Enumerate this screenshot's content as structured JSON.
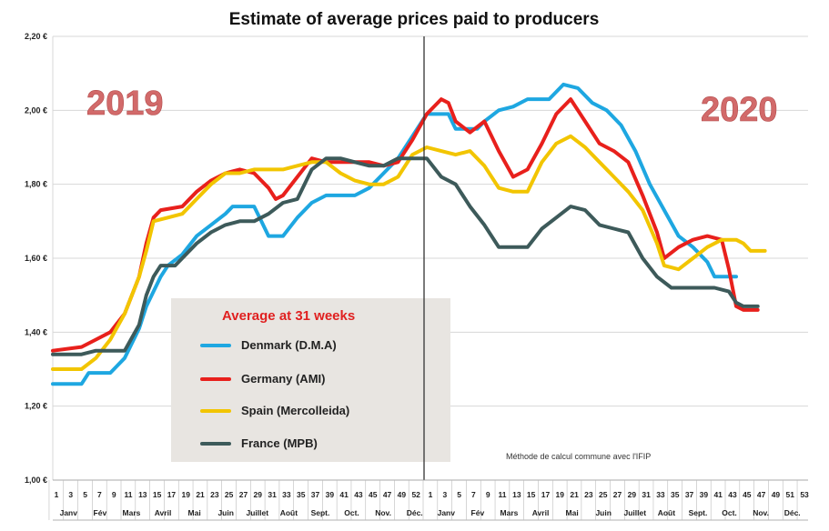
{
  "chart_data": {
    "type": "line",
    "title": "Estimate of average prices paid to producers",
    "xlabel": "",
    "ylabel": "",
    "ylim": [
      1.0,
      2.2
    ],
    "y_ticks": [
      "1,00 €",
      "1,20 €",
      "1,40 €",
      "1,60 €",
      "1,80 €",
      "2,00 €",
      "2,20 €"
    ],
    "x_week_ticks": [
      "1",
      "3",
      "5",
      "7",
      "9",
      "11",
      "13",
      "15",
      "17",
      "19",
      "21",
      "23",
      "25",
      "27",
      "29",
      "31",
      "33",
      "35",
      "37",
      "39",
      "41",
      "43",
      "45",
      "47",
      "49",
      "52",
      "1",
      "3",
      "5",
      "7",
      "9",
      "11",
      "13",
      "15",
      "17",
      "19",
      "21",
      "23",
      "25",
      "27",
      "29",
      "31",
      "33",
      "35",
      "37",
      "39",
      "41",
      "43",
      "45",
      "47",
      "49",
      "51",
      "53"
    ],
    "months_2019": [
      "Janv",
      "Fév",
      "Mars",
      "Avril",
      "Mai",
      "Juin",
      "Juillet",
      "Août",
      "Sept.",
      "Oct.",
      "Nov.",
      "Déc."
    ],
    "months_2020": [
      "Janv",
      "Fév",
      "Mars",
      "Avril",
      "Mai",
      "Juin",
      "Juillet",
      "Août",
      "Sept.",
      "Oct.",
      "Nov.",
      "Déc."
    ],
    "year_labels": [
      "2019",
      "2020"
    ],
    "legend_title": "Average at 31 weeks",
    "note": "Méthode de calcul commune avec l'IFIP",
    "grid": true,
    "x_unit": "week index (1 = week 1 of 2019, 53 = week 1 of 2020)",
    "series": [
      {
        "name": "Denmark (D.M.A)",
        "color": "#1ea7e1",
        "points": [
          [
            1,
            1.26
          ],
          [
            5,
            1.26
          ],
          [
            6,
            1.29
          ],
          [
            9,
            1.29
          ],
          [
            11,
            1.33
          ],
          [
            13,
            1.41
          ],
          [
            14,
            1.47
          ],
          [
            16,
            1.55
          ],
          [
            17,
            1.58
          ],
          [
            19,
            1.61
          ],
          [
            21,
            1.66
          ],
          [
            23,
            1.69
          ],
          [
            25,
            1.72
          ],
          [
            26,
            1.74
          ],
          [
            29,
            1.74
          ],
          [
            30,
            1.7
          ],
          [
            31,
            1.66
          ],
          [
            33,
            1.66
          ],
          [
            35,
            1.71
          ],
          [
            37,
            1.75
          ],
          [
            39,
            1.77
          ],
          [
            43,
            1.77
          ],
          [
            45,
            1.79
          ],
          [
            47,
            1.83
          ],
          [
            49,
            1.87
          ],
          [
            51,
            1.93
          ],
          [
            53,
            1.99
          ],
          [
            56,
            1.99
          ],
          [
            57,
            1.95
          ],
          [
            60,
            1.95
          ],
          [
            61,
            1.97
          ],
          [
            63,
            2.0
          ],
          [
            65,
            2.01
          ],
          [
            67,
            2.03
          ],
          [
            70,
            2.03
          ],
          [
            72,
            2.07
          ],
          [
            74,
            2.06
          ],
          [
            76,
            2.02
          ],
          [
            78,
            2.0
          ],
          [
            80,
            1.96
          ],
          [
            82,
            1.89
          ],
          [
            84,
            1.8
          ],
          [
            86,
            1.73
          ],
          [
            88,
            1.66
          ],
          [
            90,
            1.63
          ],
          [
            92,
            1.59
          ],
          [
            93,
            1.55
          ],
          [
            96,
            1.55
          ]
        ]
      },
      {
        "name": "Germany (AMI)",
        "color": "#e8201c",
        "points": [
          [
            1,
            1.35
          ],
          [
            5,
            1.36
          ],
          [
            7,
            1.38
          ],
          [
            9,
            1.4
          ],
          [
            11,
            1.45
          ],
          [
            13,
            1.55
          ],
          [
            14,
            1.64
          ],
          [
            15,
            1.71
          ],
          [
            16,
            1.73
          ],
          [
            19,
            1.74
          ],
          [
            21,
            1.78
          ],
          [
            23,
            1.81
          ],
          [
            25,
            1.83
          ],
          [
            27,
            1.84
          ],
          [
            29,
            1.83
          ],
          [
            31,
            1.79
          ],
          [
            32,
            1.76
          ],
          [
            33,
            1.77
          ],
          [
            35,
            1.82
          ],
          [
            37,
            1.87
          ],
          [
            39,
            1.86
          ],
          [
            41,
            1.86
          ],
          [
            45,
            1.86
          ],
          [
            47,
            1.85
          ],
          [
            49,
            1.86
          ],
          [
            51,
            1.92
          ],
          [
            53,
            1.99
          ],
          [
            55,
            2.03
          ],
          [
            56,
            2.02
          ],
          [
            57,
            1.97
          ],
          [
            59,
            1.94
          ],
          [
            61,
            1.97
          ],
          [
            63,
            1.89
          ],
          [
            65,
            1.82
          ],
          [
            67,
            1.84
          ],
          [
            69,
            1.91
          ],
          [
            71,
            1.99
          ],
          [
            73,
            2.03
          ],
          [
            75,
            1.97
          ],
          [
            77,
            1.91
          ],
          [
            79,
            1.89
          ],
          [
            81,
            1.86
          ],
          [
            83,
            1.77
          ],
          [
            85,
            1.67
          ],
          [
            86,
            1.6
          ],
          [
            88,
            1.63
          ],
          [
            90,
            1.65
          ],
          [
            92,
            1.66
          ],
          [
            94,
            1.65
          ],
          [
            95,
            1.57
          ],
          [
            96,
            1.47
          ],
          [
            97,
            1.46
          ],
          [
            99,
            1.46
          ]
        ]
      },
      {
        "name": "Spain (Mercolleida)",
        "color": "#f2c500",
        "points": [
          [
            1,
            1.3
          ],
          [
            5,
            1.3
          ],
          [
            7,
            1.33
          ],
          [
            9,
            1.38
          ],
          [
            11,
            1.45
          ],
          [
            13,
            1.55
          ],
          [
            14,
            1.62
          ],
          [
            15,
            1.7
          ],
          [
            17,
            1.71
          ],
          [
            19,
            1.72
          ],
          [
            21,
            1.76
          ],
          [
            23,
            1.8
          ],
          [
            25,
            1.83
          ],
          [
            27,
            1.83
          ],
          [
            29,
            1.84
          ],
          [
            31,
            1.84
          ],
          [
            33,
            1.84
          ],
          [
            35,
            1.85
          ],
          [
            37,
            1.86
          ],
          [
            39,
            1.86
          ],
          [
            41,
            1.83
          ],
          [
            43,
            1.81
          ],
          [
            45,
            1.8
          ],
          [
            47,
            1.8
          ],
          [
            49,
            1.82
          ],
          [
            51,
            1.88
          ],
          [
            53,
            1.9
          ],
          [
            55,
            1.89
          ],
          [
            57,
            1.88
          ],
          [
            59,
            1.89
          ],
          [
            61,
            1.85
          ],
          [
            63,
            1.79
          ],
          [
            65,
            1.78
          ],
          [
            67,
            1.78
          ],
          [
            69,
            1.86
          ],
          [
            71,
            1.91
          ],
          [
            73,
            1.93
          ],
          [
            75,
            1.9
          ],
          [
            77,
            1.86
          ],
          [
            79,
            1.82
          ],
          [
            81,
            1.78
          ],
          [
            83,
            1.73
          ],
          [
            85,
            1.64
          ],
          [
            86,
            1.58
          ],
          [
            88,
            1.57
          ],
          [
            90,
            1.6
          ],
          [
            92,
            1.63
          ],
          [
            94,
            1.65
          ],
          [
            96,
            1.65
          ],
          [
            97,
            1.64
          ],
          [
            98,
            1.62
          ],
          [
            100,
            1.62
          ]
        ]
      },
      {
        "name": "France (MPB)",
        "color": "#3d5a5a",
        "points": [
          [
            1,
            1.34
          ],
          [
            3,
            1.34
          ],
          [
            5,
            1.34
          ],
          [
            7,
            1.35
          ],
          [
            11,
            1.35
          ],
          [
            13,
            1.42
          ],
          [
            14,
            1.5
          ],
          [
            15,
            1.55
          ],
          [
            16,
            1.58
          ],
          [
            18,
            1.58
          ],
          [
            19,
            1.6
          ],
          [
            21,
            1.64
          ],
          [
            23,
            1.67
          ],
          [
            25,
            1.69
          ],
          [
            27,
            1.7
          ],
          [
            29,
            1.7
          ],
          [
            31,
            1.72
          ],
          [
            33,
            1.75
          ],
          [
            35,
            1.76
          ],
          [
            37,
            1.84
          ],
          [
            39,
            1.87
          ],
          [
            41,
            1.87
          ],
          [
            43,
            1.86
          ],
          [
            45,
            1.85
          ],
          [
            47,
            1.85
          ],
          [
            49,
            1.87
          ],
          [
            51,
            1.87
          ],
          [
            53,
            1.87
          ],
          [
            55,
            1.82
          ],
          [
            57,
            1.8
          ],
          [
            59,
            1.74
          ],
          [
            61,
            1.69
          ],
          [
            63,
            1.63
          ],
          [
            65,
            1.63
          ],
          [
            67,
            1.63
          ],
          [
            69,
            1.68
          ],
          [
            71,
            1.71
          ],
          [
            73,
            1.74
          ],
          [
            75,
            1.73
          ],
          [
            77,
            1.69
          ],
          [
            79,
            1.68
          ],
          [
            81,
            1.67
          ],
          [
            83,
            1.6
          ],
          [
            85,
            1.55
          ],
          [
            87,
            1.52
          ],
          [
            89,
            1.52
          ],
          [
            91,
            1.52
          ],
          [
            93,
            1.52
          ],
          [
            95,
            1.51
          ],
          [
            96,
            1.48
          ],
          [
            97,
            1.47
          ],
          [
            99,
            1.47
          ]
        ]
      }
    ]
  }
}
